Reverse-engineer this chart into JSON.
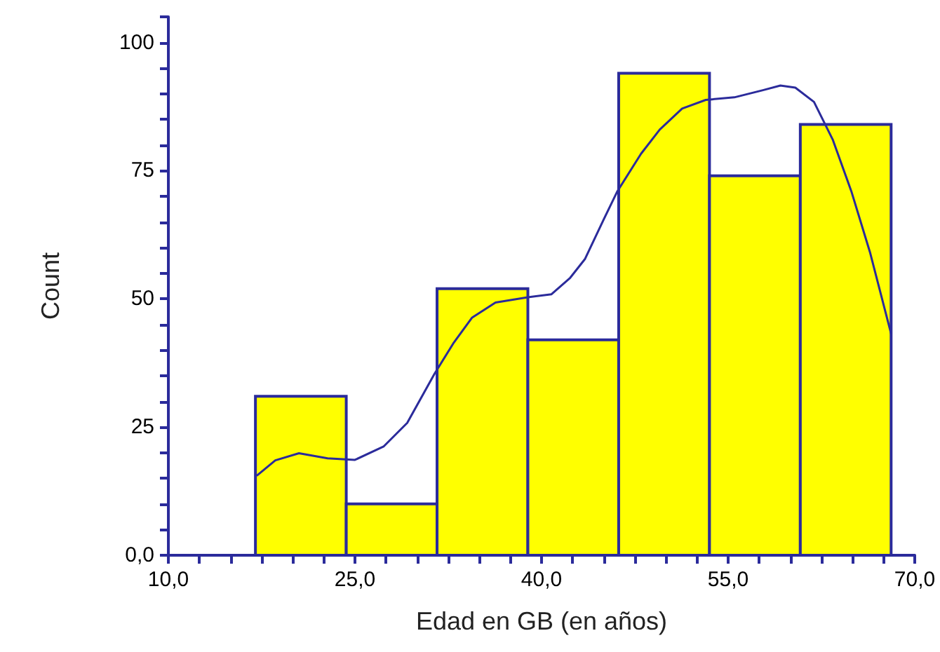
{
  "chart_data": {
    "type": "histogram",
    "xlabel": "Edad en GB (en años)",
    "ylabel": "Count",
    "bins": [
      17.0,
      24.3,
      31.6,
      38.9,
      46.2,
      53.5,
      60.8,
      68.1
    ],
    "values": [
      31,
      10,
      52,
      42,
      94,
      74,
      84
    ],
    "color": "#ffff00",
    "series": [
      {
        "type": "line",
        "color": "#2b2b9b",
        "x": [
          17.1,
          18.6,
          20.5,
          22.8,
          25.0,
          27.3,
          29.2,
          31.4,
          32.9,
          34.4,
          36.3,
          38.9,
          40.8,
          42.3,
          43.5,
          45.0,
          46.1,
          48.0,
          49.5,
          51.3,
          53.2,
          55.5,
          57.8,
          59.2,
          60.4,
          61.9,
          63.4,
          64.9,
          66.4,
          68.1
        ],
        "values": [
          15.5,
          18.5,
          19.9,
          18.9,
          18.6,
          21.2,
          25.8,
          35.4,
          41.3,
          46.3,
          49.3,
          50.3,
          50.9,
          54.1,
          57.8,
          65.5,
          71.0,
          78.3,
          83.0,
          87.1,
          88.8,
          89.3,
          90.7,
          91.6,
          91.2,
          88.4,
          81.1,
          71.0,
          59.1,
          43.2
        ]
      }
    ],
    "xlim": [
      10,
      70
    ],
    "xticks": [
      {
        "value": 10,
        "label": "10,0"
      },
      {
        "value": 12.5,
        "label": null
      },
      {
        "value": 15,
        "label": null
      },
      {
        "value": 17.5,
        "label": null
      },
      {
        "value": 20,
        "label": null
      },
      {
        "value": 22.5,
        "label": null
      },
      {
        "value": 25,
        "label": "25,0"
      },
      {
        "value": 27.5,
        "label": null
      },
      {
        "value": 30,
        "label": null
      },
      {
        "value": 32.5,
        "label": null
      },
      {
        "value": 35,
        "label": null
      },
      {
        "value": 37.5,
        "label": null
      },
      {
        "value": 40,
        "label": "40,0"
      },
      {
        "value": 42.5,
        "label": null
      },
      {
        "value": 45,
        "label": null
      },
      {
        "value": 47.5,
        "label": null
      },
      {
        "value": 50,
        "label": null
      },
      {
        "value": 52.5,
        "label": null
      },
      {
        "value": 55,
        "label": "55,0"
      },
      {
        "value": 57.5,
        "label": null
      },
      {
        "value": 60,
        "label": null
      },
      {
        "value": 62.5,
        "label": null
      },
      {
        "value": 65,
        "label": null
      },
      {
        "value": 67.5,
        "label": null
      },
      {
        "value": 70,
        "label": "70,0"
      }
    ],
    "ylim": [
      0,
      105
    ],
    "yticks": [
      {
        "value": 0,
        "label": "0,0"
      },
      {
        "value": 5,
        "label": null
      },
      {
        "value": 10,
        "label": null
      },
      {
        "value": 15,
        "label": null
      },
      {
        "value": 20,
        "label": null
      },
      25,
      {
        "value": 30,
        "label": null
      },
      {
        "value": 35,
        "label": null
      },
      {
        "value": 40,
        "label": null
      },
      {
        "value": 45,
        "label": null
      },
      50,
      {
        "value": 55,
        "label": null
      },
      {
        "value": 60,
        "label": null
      },
      {
        "value": 65,
        "label": null
      },
      {
        "value": 70,
        "label": null
      },
      75,
      {
        "value": 80,
        "label": null
      },
      {
        "value": 85,
        "label": null
      },
      {
        "value": 90,
        "label": null
      },
      {
        "value": 95,
        "label": null
      },
      100,
      {
        "value": 105,
        "label": null
      }
    ]
  }
}
